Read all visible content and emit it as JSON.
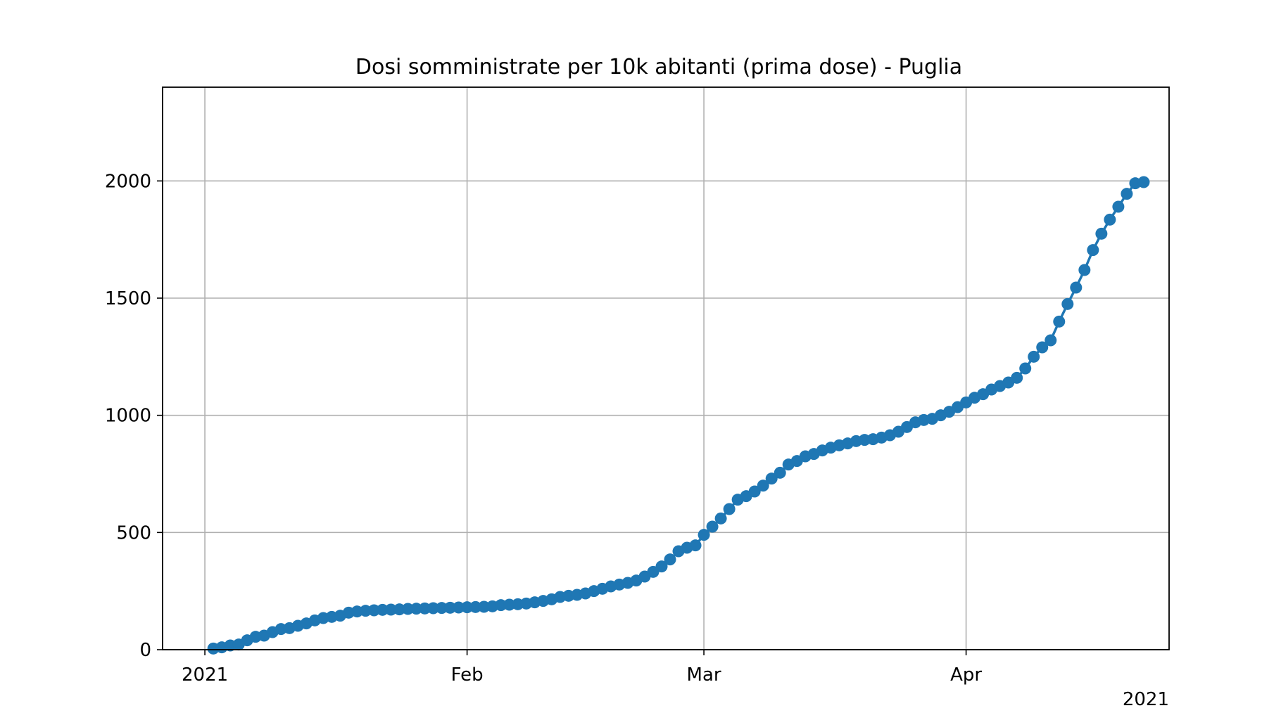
{
  "chart_data": {
    "type": "line",
    "title": "Dosi somministrate per 10k abitanti (prima dose) - Puglia",
    "xlabel": "",
    "ylabel": "",
    "x_start": "2020-12-27",
    "x_end": "2021-04-25",
    "ylim": [
      0,
      2400
    ],
    "yticks": [
      0,
      500,
      1000,
      1500,
      2000
    ],
    "xticks": [
      {
        "date": "2021-01-01",
        "label": "2021"
      },
      {
        "date": "2021-02-01",
        "label": "Feb"
      },
      {
        "date": "2021-03-01",
        "label": "Mar"
      },
      {
        "date": "2021-04-01",
        "label": "Apr"
      }
    ],
    "x_offset_label": "2021",
    "grid": true,
    "series_color": "#1f77b4",
    "series": [
      {
        "x": [
          "2021-01-02",
          "2021-01-03",
          "2021-01-04",
          "2021-01-05",
          "2021-01-06",
          "2021-01-07",
          "2021-01-08",
          "2021-01-09",
          "2021-01-10",
          "2021-01-11",
          "2021-01-12",
          "2021-01-13",
          "2021-01-14",
          "2021-01-15",
          "2021-01-16",
          "2021-01-17",
          "2021-01-18",
          "2021-01-19",
          "2021-01-20",
          "2021-01-21",
          "2021-01-22",
          "2021-01-23",
          "2021-01-24",
          "2021-01-25",
          "2021-01-26",
          "2021-01-27",
          "2021-01-28",
          "2021-01-29",
          "2021-01-30",
          "2021-01-31",
          "2021-02-01",
          "2021-02-02",
          "2021-02-03",
          "2021-02-04",
          "2021-02-05",
          "2021-02-06",
          "2021-02-07",
          "2021-02-08",
          "2021-02-09",
          "2021-02-10",
          "2021-02-11",
          "2021-02-12",
          "2021-02-13",
          "2021-02-14",
          "2021-02-15",
          "2021-02-16",
          "2021-02-17",
          "2021-02-18",
          "2021-02-19",
          "2021-02-20",
          "2021-02-21",
          "2021-02-22",
          "2021-02-23",
          "2021-02-24",
          "2021-02-25",
          "2021-02-26",
          "2021-02-27",
          "2021-02-28",
          "2021-03-01",
          "2021-03-02",
          "2021-03-03",
          "2021-03-04",
          "2021-03-05",
          "2021-03-06",
          "2021-03-07",
          "2021-03-08",
          "2021-03-09",
          "2021-03-10",
          "2021-03-11",
          "2021-03-12",
          "2021-03-13",
          "2021-03-14",
          "2021-03-15",
          "2021-03-16",
          "2021-03-17",
          "2021-03-18",
          "2021-03-19",
          "2021-03-20",
          "2021-03-21",
          "2021-03-22",
          "2021-03-23",
          "2021-03-24",
          "2021-03-25",
          "2021-03-26",
          "2021-03-27",
          "2021-03-28",
          "2021-03-29",
          "2021-03-30",
          "2021-03-31",
          "2021-04-01",
          "2021-04-02",
          "2021-04-03",
          "2021-04-04",
          "2021-04-05",
          "2021-04-06",
          "2021-04-07",
          "2021-04-08",
          "2021-04-09",
          "2021-04-10",
          "2021-04-11",
          "2021-04-12",
          "2021-04-13",
          "2021-04-14",
          "2021-04-15",
          "2021-04-16",
          "2021-04-17",
          "2021-04-18",
          "2021-04-19",
          "2021-04-20",
          "2021-04-21",
          "2021-04-22"
        ],
        "y": [
          5,
          10,
          18,
          22,
          40,
          55,
          60,
          75,
          88,
          92,
          102,
          112,
          125,
          135,
          140,
          145,
          158,
          163,
          166,
          168,
          170,
          171,
          172,
          174,
          175,
          176,
          177,
          178,
          179,
          180,
          181,
          182,
          183,
          185,
          190,
          192,
          194,
          197,
          202,
          208,
          215,
          225,
          230,
          234,
          240,
          250,
          260,
          270,
          278,
          285,
          295,
          312,
          332,
          355,
          385,
          420,
          435,
          445,
          490,
          525,
          560,
          600,
          640,
          655,
          675,
          700,
          730,
          755,
          790,
          805,
          825,
          835,
          850,
          862,
          872,
          880,
          890,
          895,
          898,
          905,
          915,
          930,
          950,
          970,
          980,
          985,
          1000,
          1015,
          1035,
          1055,
          1075,
          1090,
          1110,
          1125,
          1140,
          1160,
          1200,
          1250,
          1290,
          1320,
          1400,
          1475,
          1545,
          1620,
          1705,
          1775,
          1835,
          1890,
          1945,
          1990,
          1995
        ]
      }
    ]
  }
}
